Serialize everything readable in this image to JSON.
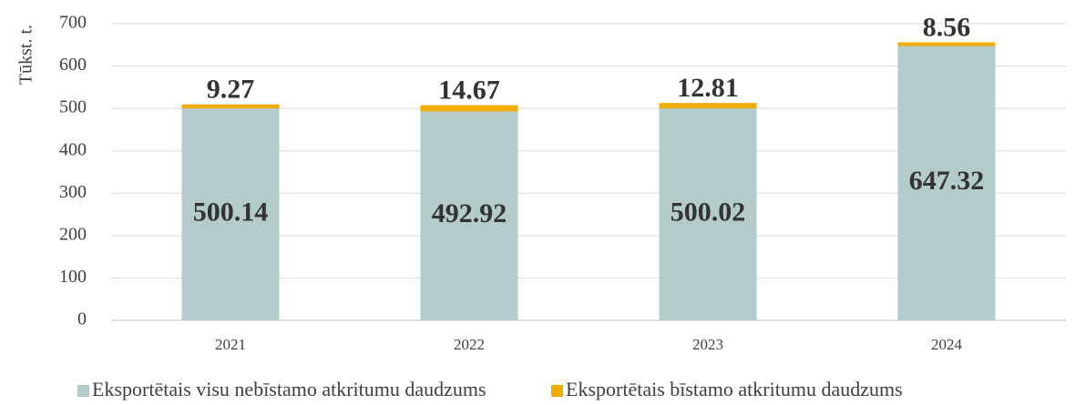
{
  "chart_data": {
    "type": "stacked_bar",
    "y_label": "Tūkst. t.",
    "categories": [
      "2021",
      "2022",
      "2023",
      "2024"
    ],
    "series": [
      {
        "name": "Eksportētais visu nebīstamo atkritumu daudzums",
        "color": "#b3cbcb",
        "values": [
          500.14,
          492.92,
          500.02,
          647.32
        ]
      },
      {
        "name": "Eksportētais bīstamo atkritumu daudzums",
        "color": "#f0ad00",
        "values": [
          9.27,
          14.67,
          12.81,
          8.56
        ]
      }
    ],
    "ylim": [
      0,
      700
    ],
    "yticks": [
      0,
      100,
      200,
      300,
      400,
      500,
      600,
      700
    ],
    "grid": true
  }
}
